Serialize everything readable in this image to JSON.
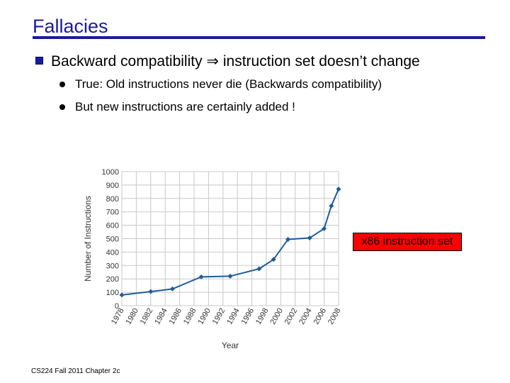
{
  "slide": {
    "title": "Fallacies",
    "main_bullet": "Backward compatibility ⇒ instruction set doesn’t change",
    "sub_bullets": [
      "True: Old instructions never die (Backwards compatibility)",
      "But new instructions are certainly added !"
    ],
    "callout": "x86 instruction set",
    "footer": "CS224 Fall 2011 Chapter 2c"
  },
  "colors": {
    "title": "#1a1aa0",
    "line": "#1f5c99",
    "callout_bg": "#ff0000"
  },
  "chart_data": {
    "type": "line",
    "xlabel": "Year",
    "ylabel": "Number of Instructions",
    "ylim": [
      0,
      1000
    ],
    "yticks": [
      0,
      100,
      200,
      300,
      400,
      500,
      600,
      700,
      800,
      900,
      1000
    ],
    "xticks": [
      "1978",
      "1980",
      "1982",
      "1984",
      "1986",
      "1988",
      "1990",
      "1992",
      "1994",
      "1996",
      "1998",
      "2000",
      "2002",
      "2004",
      "2006",
      "2008"
    ],
    "xlim": [
      1978,
      2008
    ],
    "grid": true,
    "series": [
      {
        "x": [
          1978,
          1982,
          1985,
          1989,
          1993,
          1997,
          1999,
          2001,
          2004,
          2006,
          2007,
          2008
        ],
        "y": [
          80,
          105,
          125,
          215,
          220,
          275,
          345,
          495,
          505,
          575,
          745,
          870
        ]
      }
    ]
  }
}
